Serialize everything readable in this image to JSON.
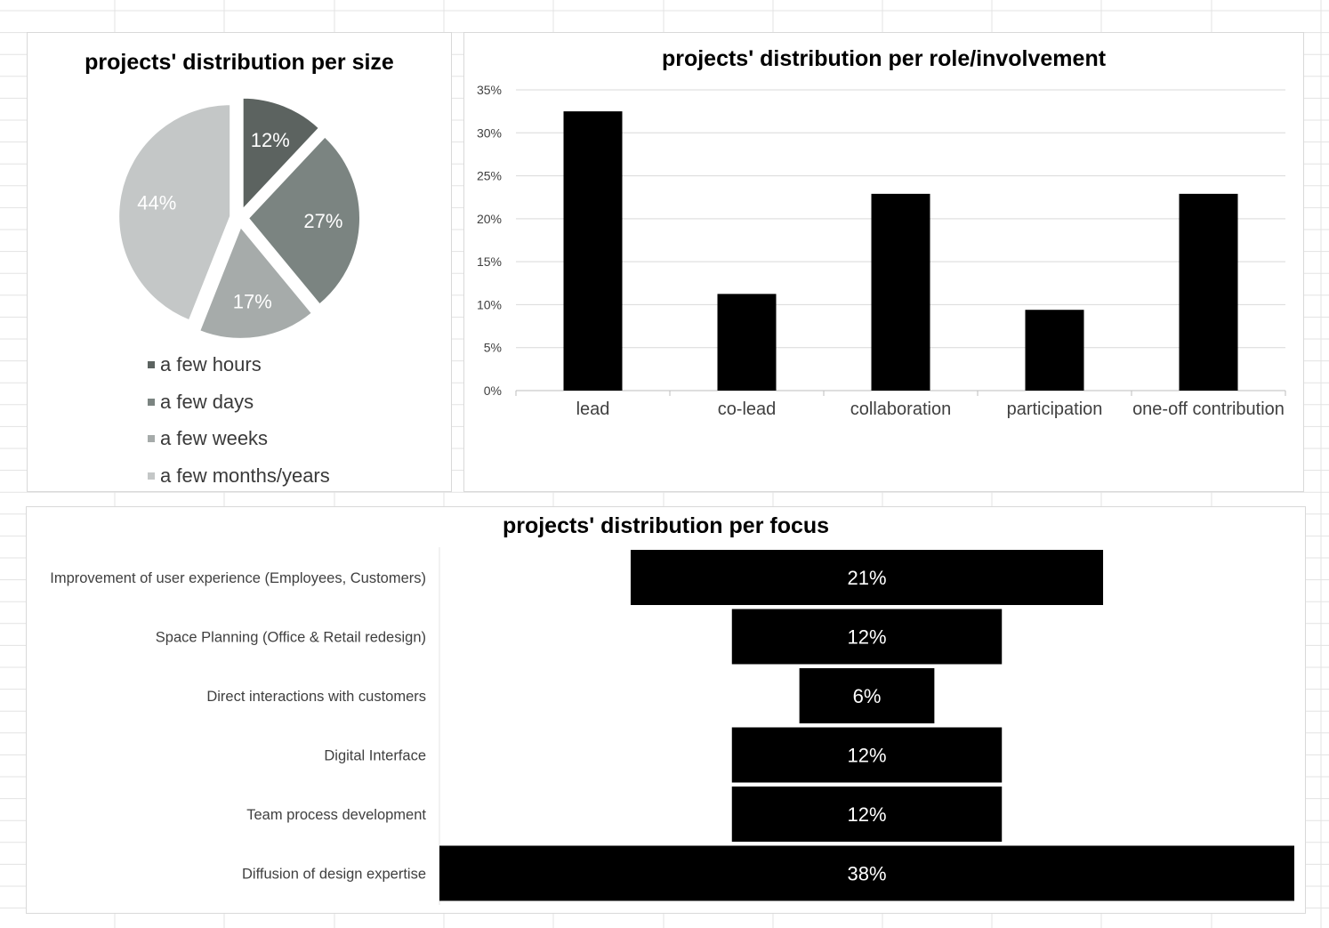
{
  "chart_data": [
    {
      "type": "pie",
      "title": "projects' distribution per size",
      "categories": [
        "a few hours",
        "a few days",
        "a few weeks",
        "a few months/years"
      ],
      "values": [
        12,
        27,
        17,
        44
      ],
      "labels": [
        "12%",
        "27%",
        "17%",
        "44%"
      ],
      "colors": [
        "#5c6360",
        "#7b8481",
        "#a6abaa",
        "#c4c7c7"
      ],
      "legend_position": "bottom",
      "exploded": true
    },
    {
      "type": "bar",
      "title": "projects' distribution per role/involvement",
      "categories": [
        "lead",
        "co-lead",
        "collaboration",
        "participation",
        "one-off contribution"
      ],
      "values": [
        32.5,
        11.25,
        22.9,
        9.4,
        22.9
      ],
      "ylim": [
        0,
        35
      ],
      "yticks": [
        0,
        5,
        10,
        15,
        20,
        25,
        30,
        35
      ],
      "ytick_labels": [
        "0%",
        "5%",
        "10%",
        "15%",
        "20%",
        "25%",
        "30%",
        "35%"
      ],
      "bar_color": "#000000",
      "grid": true
    },
    {
      "type": "bar",
      "orientation": "horizontal-centered",
      "title": "projects' distribution per focus",
      "categories": [
        "Improvement of user experience (Employees, Customers)",
        "Space Planning (Office & Retail redesign)",
        "Direct interactions with customers",
        "Digital Interface",
        "Team process development",
        "Diffusion of design expertise"
      ],
      "values": [
        21,
        12,
        6,
        12,
        12,
        38
      ],
      "labels": [
        "21%",
        "12%",
        "6%",
        "12%",
        "12%",
        "38%"
      ],
      "bar_color": "#000000"
    }
  ]
}
